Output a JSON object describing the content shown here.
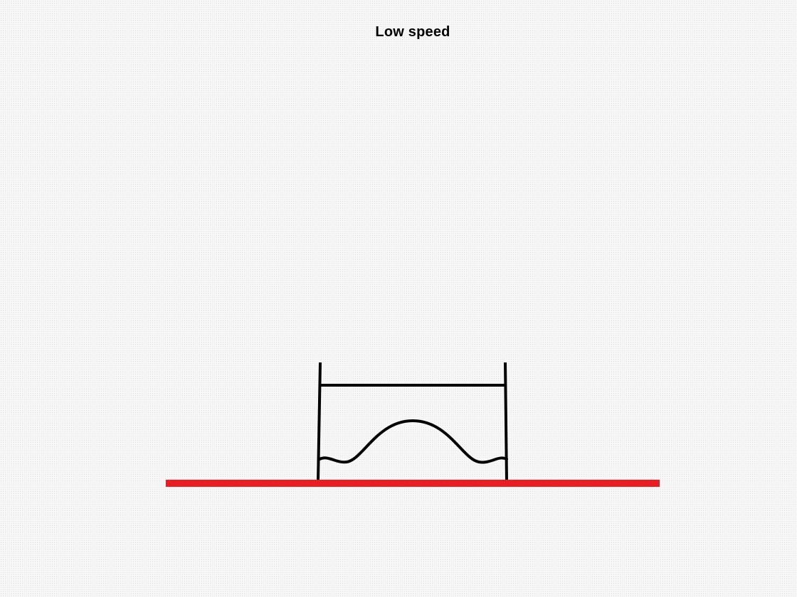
{
  "title": "Low speed",
  "colors": {
    "ground": "#ec1c24",
    "structure": "#000000",
    "background": "#f7f7f7"
  }
}
